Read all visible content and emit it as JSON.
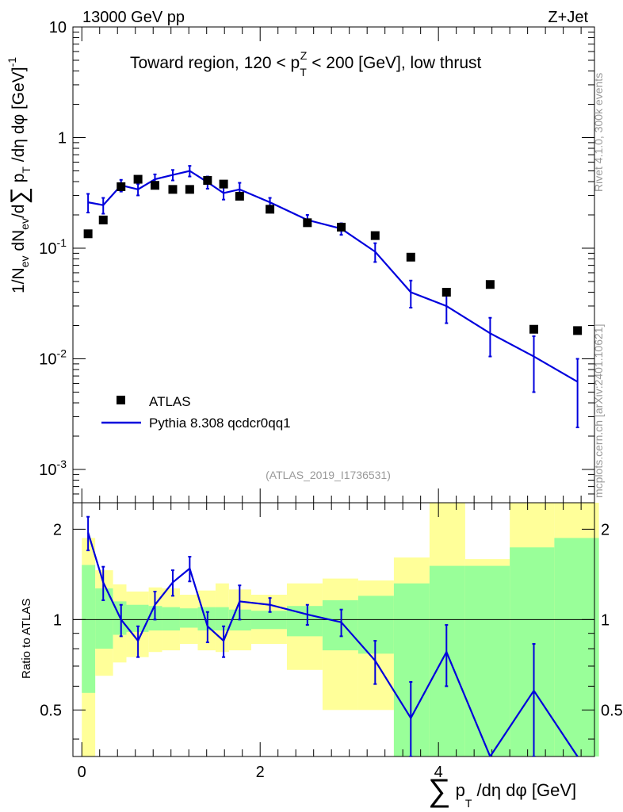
{
  "header": {
    "energy_label": "13000 GeV pp",
    "process_label": "Z+Jet",
    "title_main": "Toward region, 120 < p",
    "title_sup": "Z",
    "title_sub": "T",
    "title_rest": " < 200 [GeV], low thrust",
    "analysis_label": "(ATLAS_2019_I1736531)",
    "side_rivet": "Rivet 4.1.0,  300k events",
    "side_site": "mcplots.cern.ch [arXiv:2401.10621]"
  },
  "axes": {
    "main_ylabel": "1/N_ev dN_ev/d∑ p_T /dη dφ [GeV]^-1",
    "ratio_ylabel": "Ratio to ATLAS",
    "xlabel": "∑ p_T /dη dφ [GeV]",
    "main_yticks": [
      "10^-3",
      "10^-2",
      "10^-1",
      "1",
      "10"
    ],
    "ratio_yticks": [
      "0.5",
      "1",
      "2"
    ],
    "xticks": [
      "0",
      "2",
      "4"
    ]
  },
  "legend": {
    "data_label": "ATLAS",
    "mc_label": "Pythia 8.308 qcdcr0qq1"
  },
  "colors": {
    "mc_line": "#0000dd",
    "band_inner": "#99ff99",
    "band_outer": "#ffff99",
    "data_marker": "#000000"
  },
  "chart_data": {
    "type": "scatter",
    "xlim": [
      -0.1,
      5.75
    ],
    "ylim_main": [
      0.0005,
      10
    ],
    "ylim_ratio": [
      0.35,
      2.45
    ],
    "yscale_main": "log",
    "yscale_ratio": "log",
    "bins": [
      [
        0.0,
        0.15
      ],
      [
        0.15,
        0.35
      ],
      [
        0.35,
        0.5
      ],
      [
        0.5,
        0.75
      ],
      [
        0.75,
        0.9
      ],
      [
        0.9,
        1.1
      ],
      [
        1.1,
        1.3
      ],
      [
        1.3,
        1.5
      ],
      [
        1.5,
        1.65
      ],
      [
        1.65,
        1.9
      ],
      [
        1.9,
        2.3
      ],
      [
        2.3,
        2.7
      ],
      [
        2.7,
        3.1
      ],
      [
        3.1,
        3.5
      ],
      [
        3.5,
        3.9
      ],
      [
        3.9,
        4.3
      ],
      [
        4.3,
        4.8
      ],
      [
        4.8,
        5.3
      ],
      [
        5.3,
        5.8
      ]
    ],
    "data_x": [
      0.07,
      0.24,
      0.44,
      0.63,
      0.82,
      1.02,
      1.21,
      1.41,
      1.59,
      1.77,
      2.11,
      2.53,
      2.91,
      3.29,
      3.69,
      4.09,
      4.58,
      5.07,
      5.56
    ],
    "data_y": [
      0.135,
      0.18,
      0.36,
      0.42,
      0.37,
      0.34,
      0.34,
      0.41,
      0.38,
      0.295,
      0.225,
      0.17,
      0.155,
      0.13,
      0.083,
      0.04,
      0.047,
      0.0185,
      0.018
    ],
    "series": [
      {
        "name": "Pythia 8.308 qcdcr0qq1",
        "x": [
          0.07,
          0.24,
          0.44,
          0.63,
          0.82,
          1.02,
          1.21,
          1.41,
          1.59,
          1.77,
          2.11,
          2.53,
          2.91,
          3.29,
          3.69,
          4.09,
          4.58,
          5.07,
          5.56
        ],
        "y": [
          0.26,
          0.245,
          0.37,
          0.34,
          0.42,
          0.46,
          0.5,
          0.395,
          0.315,
          0.34,
          0.26,
          0.18,
          0.15,
          0.093,
          0.04,
          0.03,
          0.017,
          0.0105,
          0.0062
        ],
        "err": [
          0.05,
          0.04,
          0.045,
          0.04,
          0.045,
          0.05,
          0.055,
          0.05,
          0.04,
          0.05,
          0.025,
          0.02,
          0.018,
          0.018,
          0.011,
          0.009,
          0.0065,
          0.0055,
          0.0038
        ]
      }
    ],
    "ratio": {
      "x": [
        0.07,
        0.24,
        0.44,
        0.63,
        0.82,
        1.02,
        1.21,
        1.41,
        1.59,
        1.77,
        2.11,
        2.53,
        2.91,
        3.29,
        3.69,
        4.09,
        4.58,
        5.07,
        5.56
      ],
      "y": [
        1.95,
        1.33,
        1.0,
        0.85,
        1.12,
        1.33,
        1.48,
        0.95,
        0.85,
        1.15,
        1.12,
        1.04,
        0.98,
        0.73,
        0.47,
        0.78,
        0.33,
        0.58,
        0.34
      ],
      "err": [
        0.25,
        0.17,
        0.12,
        0.1,
        0.12,
        0.13,
        0.14,
        0.11,
        0.1,
        0.15,
        0.06,
        0.08,
        0.1,
        0.12,
        0.15,
        0.18,
        0.1,
        0.25,
        0.15
      ],
      "band_inner": [
        [
          0.57,
          1.52
        ],
        [
          0.8,
          1.27
        ],
        [
          0.89,
          1.15
        ],
        [
          0.91,
          1.12
        ],
        [
          0.92,
          1.11
        ],
        [
          0.92,
          1.1
        ],
        [
          0.94,
          1.09
        ],
        [
          0.92,
          1.1
        ],
        [
          0.92,
          1.1
        ],
        [
          0.92,
          1.08
        ],
        [
          0.93,
          1.07
        ],
        [
          0.88,
          1.11
        ],
        [
          0.79,
          1.16
        ],
        [
          0.77,
          1.2
        ],
        [
          0.0,
          1.32
        ],
        [
          0.0,
          1.51
        ],
        [
          0.0,
          1.51
        ],
        [
          0.0,
          1.74
        ],
        [
          0.0,
          1.87
        ]
      ],
      "band_outer": [
        [
          0.23,
          1.87
        ],
        [
          0.65,
          1.46
        ],
        [
          0.72,
          1.31
        ],
        [
          0.75,
          1.24
        ],
        [
          0.78,
          1.28
        ],
        [
          0.79,
          1.27
        ],
        [
          0.83,
          1.21
        ],
        [
          0.79,
          1.25
        ],
        [
          0.78,
          1.32
        ],
        [
          0.79,
          1.26
        ],
        [
          0.83,
          1.21
        ],
        [
          0.68,
          1.32
        ],
        [
          0.5,
          1.37
        ],
        [
          0.5,
          1.35
        ],
        [
          0.0,
          1.61
        ],
        [
          0.0,
          2.45
        ],
        [
          0.0,
          1.59
        ],
        [
          0.0,
          2.45
        ],
        [
          0.0,
          2.45
        ]
      ]
    }
  }
}
